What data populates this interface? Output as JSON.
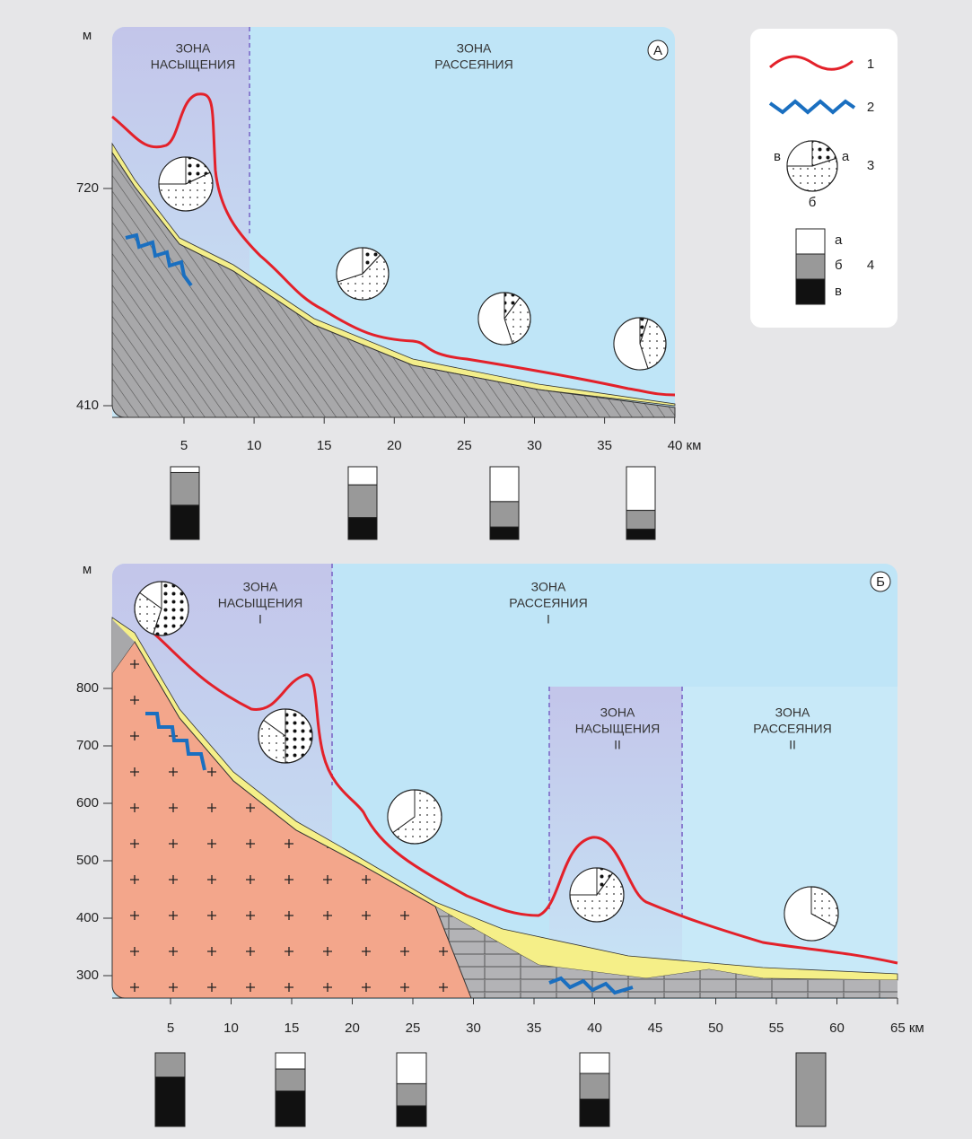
{
  "panel_a": {
    "badge": "А",
    "unit": "м",
    "zone_saturation": [
      "ЗОНА",
      "НАСЫЩЕНИЯ"
    ],
    "zone_dispersion": [
      "ЗОНА",
      "РАССЕЯНИЯ"
    ],
    "y_ticks": [
      "720",
      "410"
    ],
    "x_ticks": [
      "5",
      "10",
      "15",
      "20",
      "25",
      "30",
      "35",
      "40 км"
    ]
  },
  "panel_b": {
    "badge": "Б",
    "unit": "м",
    "zone_saturation_1": [
      "ЗОНА",
      "НАСЫЩЕНИЯ",
      "I"
    ],
    "zone_dispersion_1": [
      "ЗОНА",
      "РАССЕЯНИЯ",
      "I"
    ],
    "zone_saturation_2": [
      "ЗОНА",
      "НАСЫЩЕНИЯ",
      "II"
    ],
    "zone_dispersion_2": [
      "ЗОНА",
      "РАССЕЯНИЯ",
      "II"
    ],
    "y_ticks": [
      "800",
      "700",
      "600",
      "500",
      "400",
      "300"
    ],
    "x_ticks": [
      "5",
      "10",
      "15",
      "20",
      "25",
      "30",
      "35",
      "40",
      "45",
      "50",
      "55",
      "60",
      "65 км"
    ]
  },
  "legend": {
    "items": [
      "1",
      "2",
      "3",
      "4"
    ],
    "pie_labels": [
      "в",
      "а",
      "б"
    ],
    "bar_labels": [
      "а",
      "б",
      "в"
    ]
  }
}
